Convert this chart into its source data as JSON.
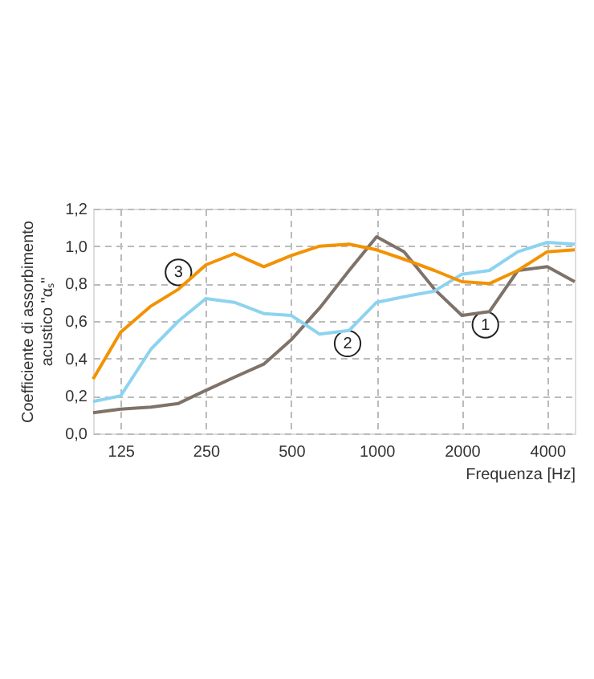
{
  "chart_data": {
    "type": "line",
    "xlabel": "Frequenza [Hz]",
    "ylabel": "Coefficiente di assorbimento\nacustico \"αₛ\"",
    "x": [
      100,
      125,
      160,
      200,
      250,
      315,
      400,
      500,
      630,
      800,
      1000,
      1250,
      1600,
      2000,
      2500,
      3150,
      4000,
      5000
    ],
    "series": [
      {
        "color": "#7f7269",
        "values": [
          0.11,
          0.13,
          0.14,
          0.16,
          0.23,
          0.3,
          0.37,
          0.5,
          0.67,
          0.87,
          1.05,
          0.97,
          0.77,
          0.63,
          0.65,
          0.87,
          0.89,
          0.81
        ]
      },
      {
        "color": "#8dd3f0",
        "values": [
          0.17,
          0.2,
          0.45,
          0.6,
          0.72,
          0.7,
          0.64,
          0.63,
          0.53,
          0.55,
          0.7,
          0.73,
          0.76,
          0.85,
          0.87,
          0.97,
          1.02,
          1.01
        ]
      },
      {
        "color": "#f39200",
        "values": [
          0.29,
          0.54,
          0.68,
          0.77,
          0.9,
          0.96,
          0.89,
          0.95,
          1.0,
          1.01,
          0.98,
          0.93,
          0.87,
          0.81,
          0.8,
          0.87,
          0.97,
          0.98
        ]
      }
    ],
    "annotations": [
      {
        "text": "1",
        "x": 2420,
        "y": 0.58
      },
      {
        "text": "2",
        "x": 790,
        "y": 0.48
      },
      {
        "text": "3",
        "x": 200,
        "y": 0.86
      }
    ],
    "log": "x",
    "xlim": [
      100,
      5000
    ],
    "xticks": [
      125,
      250,
      500,
      1000,
      2000,
      4000
    ],
    "ylim": [
      0,
      1.2
    ],
    "yticks": [
      {
        "value": 0,
        "label": "0,0"
      },
      {
        "value": 0.2,
        "label": "0,2"
      },
      {
        "value": 0.4,
        "label": "0,4"
      },
      {
        "value": 0.6,
        "label": "0,6"
      },
      {
        "value": 0.8,
        "label": "0,8"
      },
      {
        "value": 1.0,
        "label": "1,0"
      },
      {
        "value": 1.2,
        "label": "1,2"
      }
    ],
    "grid": true,
    "marker": "none",
    "line_style": "solid"
  }
}
